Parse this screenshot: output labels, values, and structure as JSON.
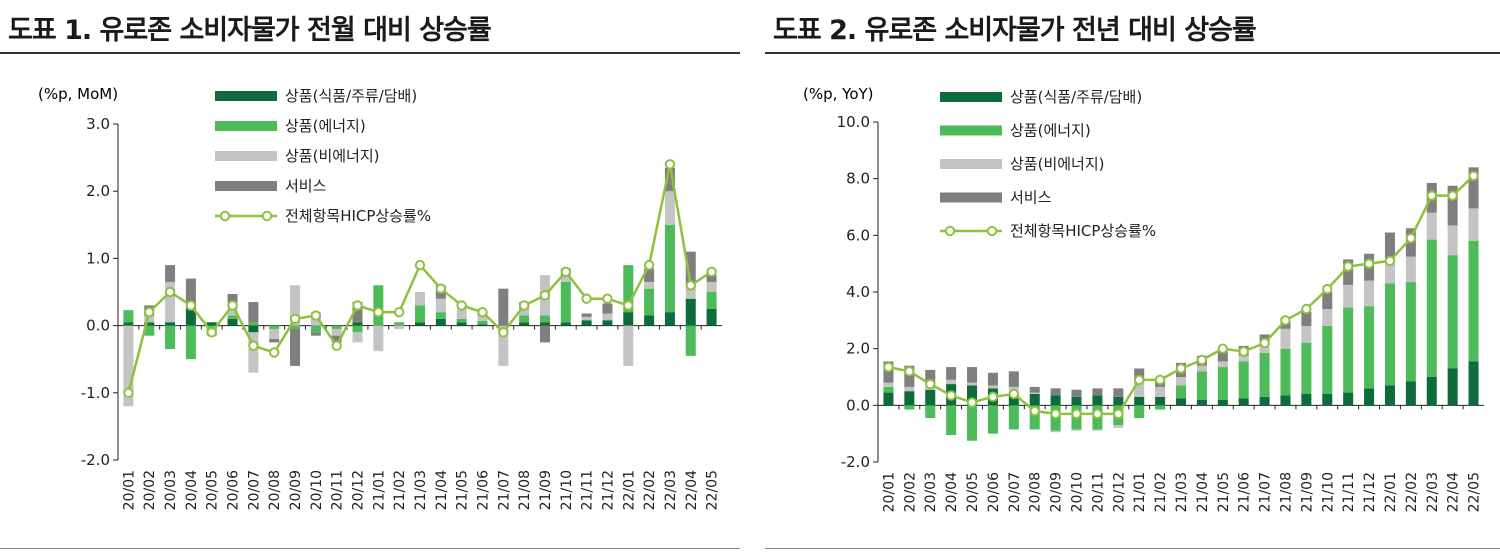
{
  "colors": {
    "goods_food": "#0e6b3c",
    "goods_energy": "#4dbb59",
    "goods_nonenergy": "#c4c4c4",
    "services": "#7f7f7f",
    "hicp": "#8dc13f"
  },
  "chart_data": [
    {
      "type": "bar",
      "stacked": true,
      "title": "도표 1. 유로존 소비자물가 전월 대비 상승률",
      "unit_label": "(%p, MoM)",
      "ylim": [
        -2.0,
        3.0
      ],
      "yticks": [
        "3.0",
        "2.0",
        "1.0",
        "0.0",
        "-1.0",
        "-2.0"
      ],
      "ytick_values": [
        3.0,
        2.0,
        1.0,
        0.0,
        -1.0,
        -2.0
      ],
      "grid": false,
      "legend_position": "top",
      "categories": [
        "20/01",
        "20/02",
        "20/03",
        "20/04",
        "20/05",
        "20/06",
        "20/07",
        "20/08",
        "20/09",
        "20/10",
        "20/11",
        "20/12",
        "21/01",
        "21/02",
        "21/03",
        "21/04",
        "21/05",
        "21/06",
        "21/07",
        "21/08",
        "21/09",
        "21/10",
        "21/11",
        "21/12",
        "22/01",
        "22/02",
        "22/03",
        "22/04",
        "22/05"
      ],
      "series": [
        {
          "name": "상품(식품/주류/담배)",
          "color_key": "goods_food",
          "kind": "bar",
          "values": [
            0.05,
            0.05,
            0.05,
            0.25,
            0.05,
            0.1,
            -0.1,
            0.0,
            0.0,
            0.0,
            0.0,
            0.05,
            0.0,
            0.0,
            0.05,
            0.1,
            0.05,
            0.02,
            0.0,
            0.05,
            0.05,
            0.05,
            0.08,
            0.08,
            0.2,
            0.15,
            0.2,
            0.4,
            0.25
          ]
        },
        {
          "name": "상품(에너지)",
          "color_key": "goods_energy",
          "kind": "bar",
          "values": [
            0.18,
            -0.15,
            -0.35,
            -0.5,
            -0.15,
            0.05,
            0.05,
            -0.05,
            -0.05,
            -0.1,
            -0.05,
            -0.1,
            0.6,
            0.05,
            0.25,
            0.1,
            0.05,
            0.05,
            0.0,
            0.1,
            0.1,
            0.6,
            0.0,
            0.0,
            0.7,
            0.4,
            1.3,
            -0.45,
            0.25
          ]
        },
        {
          "name": "상품(비에너지)",
          "color_key": "goods_nonenergy",
          "kind": "bar",
          "values": [
            -1.2,
            0.1,
            0.6,
            0.0,
            0.0,
            0.2,
            -0.6,
            -0.15,
            0.6,
            0.2,
            -0.1,
            -0.15,
            -0.38,
            -0.05,
            0.2,
            0.2,
            0.15,
            0.1,
            -0.6,
            0.1,
            0.6,
            0.1,
            0.05,
            0.1,
            -0.6,
            0.1,
            0.5,
            0.2,
            0.15
          ]
        },
        {
          "name": "서비스",
          "color_key": "services",
          "kind": "bar",
          "values": [
            0.0,
            0.15,
            0.25,
            0.45,
            0.0,
            0.12,
            0.3,
            -0.05,
            -0.55,
            -0.05,
            -0.1,
            0.3,
            0.0,
            0.0,
            0.0,
            0.2,
            0.0,
            0.05,
            0.55,
            0.1,
            -0.25,
            0.1,
            0.05,
            0.15,
            0.0,
            0.2,
            0.35,
            0.5,
            0.1
          ]
        },
        {
          "name": "전체항목HICP상승률%",
          "color_key": "hicp",
          "kind": "line",
          "values": [
            -1.0,
            0.2,
            0.5,
            0.3,
            -0.1,
            0.3,
            -0.3,
            -0.4,
            0.1,
            0.15,
            -0.3,
            0.3,
            0.2,
            0.2,
            0.9,
            0.55,
            0.3,
            0.2,
            -0.1,
            0.3,
            0.45,
            0.8,
            0.4,
            0.4,
            0.3,
            0.9,
            2.4,
            0.6,
            0.8
          ]
        }
      ]
    },
    {
      "type": "bar",
      "stacked": true,
      "title": "도표 2. 유로존 소비자물가 전년 대비 상승률",
      "unit_label": "(%p, YoY)",
      "ylim": [
        -2.0,
        10.0
      ],
      "yticks": [
        "10.0",
        "8.0",
        "6.0",
        "4.0",
        "2.0",
        "0.0",
        "-2.0"
      ],
      "ytick_values": [
        10.0,
        8.0,
        6.0,
        4.0,
        2.0,
        0.0,
        -2.0
      ],
      "grid": false,
      "legend_position": "top",
      "categories": [
        "20/01",
        "20/02",
        "20/03",
        "20/04",
        "20/05",
        "20/06",
        "20/07",
        "20/08",
        "20/09",
        "20/10",
        "20/11",
        "20/12",
        "21/01",
        "21/02",
        "21/03",
        "21/04",
        "21/05",
        "21/06",
        "21/07",
        "21/08",
        "21/09",
        "21/10",
        "21/11",
        "21/12",
        "22/01",
        "22/02",
        "22/03",
        "22/04",
        "22/05"
      ],
      "series": [
        {
          "name": "상품(식품/주류/담배)",
          "color_key": "goods_food",
          "kind": "bar",
          "values": [
            0.45,
            0.5,
            0.55,
            0.75,
            0.7,
            0.6,
            0.45,
            0.4,
            0.35,
            0.3,
            0.35,
            0.3,
            0.3,
            0.3,
            0.25,
            0.2,
            0.2,
            0.25,
            0.3,
            0.35,
            0.4,
            0.4,
            0.45,
            0.6,
            0.7,
            0.85,
            1.0,
            1.3,
            1.55
          ]
        },
        {
          "name": "상품(에너지)",
          "color_key": "goods_energy",
          "kind": "bar",
          "values": [
            0.2,
            -0.15,
            -0.45,
            -1.05,
            -1.25,
            -1.0,
            -0.85,
            -0.85,
            -0.9,
            -0.85,
            -0.85,
            -0.7,
            -0.45,
            -0.15,
            0.45,
            1.0,
            1.15,
            1.3,
            1.55,
            1.65,
            1.8,
            2.4,
            3.0,
            2.9,
            3.6,
            3.5,
            4.85,
            4.0,
            4.25
          ]
        },
        {
          "name": "상품(비에너지)",
          "color_key": "goods_nonenergy",
          "kind": "bar",
          "values": [
            0.15,
            0.15,
            0.15,
            0.15,
            0.1,
            0.1,
            0.2,
            0.05,
            -0.05,
            -0.05,
            -0.05,
            -0.1,
            0.6,
            0.35,
            0.3,
            0.2,
            0.2,
            0.2,
            0.3,
            0.7,
            0.6,
            0.6,
            0.8,
            0.9,
            0.9,
            0.9,
            0.95,
            1.05,
            1.15
          ]
        },
        {
          "name": "서비스",
          "color_key": "services",
          "kind": "bar",
          "values": [
            0.75,
            0.75,
            0.55,
            0.45,
            0.55,
            0.45,
            0.55,
            0.2,
            0.25,
            0.25,
            0.25,
            0.3,
            0.4,
            0.3,
            0.5,
            0.35,
            0.35,
            0.35,
            0.35,
            0.4,
            0.5,
            0.6,
            0.9,
            0.95,
            0.9,
            1.0,
            1.05,
            1.4,
            1.45
          ]
        },
        {
          "name": "전체항목HICP상승률%",
          "color_key": "hicp",
          "kind": "line",
          "values": [
            1.35,
            1.2,
            0.75,
            0.35,
            0.1,
            0.3,
            0.4,
            -0.2,
            -0.3,
            -0.3,
            -0.3,
            -0.3,
            0.9,
            0.9,
            1.3,
            1.6,
            2.0,
            1.9,
            2.2,
            3.0,
            3.4,
            4.1,
            4.9,
            5.0,
            5.1,
            5.9,
            7.4,
            7.4,
            8.1
          ]
        }
      ]
    }
  ]
}
